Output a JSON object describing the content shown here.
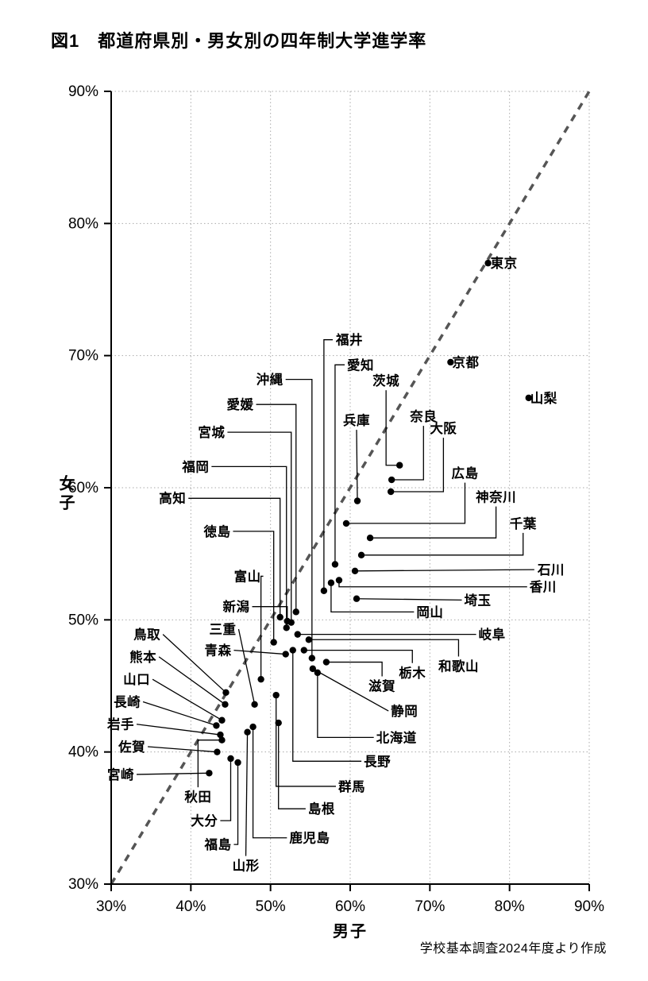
{
  "title": "図1　都道府県別・男女別の四年制大学進学率",
  "source_note": "学校基本調査2024年度より作成",
  "colors": {
    "background": "#ffffff",
    "dot": "#000000",
    "leader_line": "#000000",
    "grid": "#aaaaaa",
    "diagonal_line": "#555555",
    "axis": "#000000",
    "text": "#000000"
  },
  "chart_data": {
    "type": "scatter",
    "title": "図1　都道府県別・男女別の四年制大学進学率",
    "xlabel": "男子",
    "ylabel": "女子",
    "xlim": [
      30,
      90
    ],
    "ylim": [
      30,
      90
    ],
    "tick_values": [
      30,
      40,
      50,
      60,
      70,
      80,
      90
    ],
    "x_tick_labels": [
      "30%",
      "40%",
      "50%",
      "60%",
      "70%",
      "80%",
      "90%"
    ],
    "y_tick_labels": [
      "30%",
      "40%",
      "50%",
      "60%",
      "70%",
      "80%",
      "90%"
    ],
    "unit": "%",
    "grid": true,
    "identity_line": true,
    "points": [
      {
        "name": "東京",
        "male": 77.3,
        "female": 77.0,
        "lx": 79.3,
        "ly": 77.0,
        "leader": "none"
      },
      {
        "name": "京都",
        "male": 72.6,
        "female": 69.5,
        "lx": 74.5,
        "ly": 69.5,
        "leader": "none"
      },
      {
        "name": "山梨",
        "male": 82.4,
        "female": 66.8,
        "lx": 84.3,
        "ly": 66.8,
        "leader": "none"
      },
      {
        "name": "茨城",
        "male": 66.2,
        "female": 61.7,
        "lx": 64.5,
        "ly": 68.1,
        "leader": "elbow-vh"
      },
      {
        "name": "奈良",
        "male": 65.2,
        "female": 60.6,
        "lx": 69.2,
        "ly": 65.4,
        "leader": "elbow-vh"
      },
      {
        "name": "大阪",
        "male": 65.1,
        "female": 59.7,
        "lx": 71.7,
        "ly": 64.5,
        "leader": "elbow-vh"
      },
      {
        "name": "兵庫",
        "male": 60.9,
        "female": 59.0,
        "lx": 60.8,
        "ly": 65.1,
        "leader": "v"
      },
      {
        "name": "広島",
        "male": 59.5,
        "female": 57.3,
        "lx": 74.4,
        "ly": 61.1,
        "leader": "elbow-vh"
      },
      {
        "name": "神奈川",
        "male": 62.5,
        "female": 56.2,
        "lx": 78.3,
        "ly": 59.3,
        "leader": "elbow-vh"
      },
      {
        "name": "千葉",
        "male": 61.4,
        "female": 54.9,
        "lx": 81.7,
        "ly": 57.3,
        "leader": "elbow-vh"
      },
      {
        "name": "愛知",
        "male": 58.1,
        "female": 54.2,
        "lx": 61.3,
        "ly": 69.3,
        "leader": "elbow-hv"
      },
      {
        "name": "石川",
        "male": 60.6,
        "female": 53.7,
        "lx": 85.2,
        "ly": 53.8,
        "leader": "h"
      },
      {
        "name": "香川",
        "male": 58.6,
        "female": 53.0,
        "lx": 84.2,
        "ly": 52.5,
        "leader": "elbow-hv"
      },
      {
        "name": "岡山",
        "male": 57.6,
        "female": 52.8,
        "lx": 70.0,
        "ly": 50.6,
        "leader": "elbow-hv"
      },
      {
        "name": "福井",
        "male": 56.7,
        "female": 52.2,
        "lx": 59.9,
        "ly": 71.2,
        "leader": "elbow-hv"
      },
      {
        "name": "埼玉",
        "male": 60.8,
        "female": 51.6,
        "lx": 76.0,
        "ly": 51.5,
        "leader": "h"
      },
      {
        "name": "愛媛",
        "male": 53.2,
        "female": 50.6,
        "lx": 46.2,
        "ly": 66.3,
        "leader": "elbow-hv"
      },
      {
        "name": "高知",
        "male": 51.2,
        "female": 50.2,
        "lx": 37.7,
        "ly": 59.2,
        "leader": "elbow-hv"
      },
      {
        "name": "新潟",
        "male": 52.1,
        "female": 49.9,
        "lx": 45.7,
        "ly": 51.0,
        "leader": "elbow-hv"
      },
      {
        "name": "宮城",
        "male": 52.6,
        "female": 49.8,
        "lx": 42.6,
        "ly": 64.2,
        "leader": "elbow-hv"
      },
      {
        "name": "福岡",
        "male": 52.0,
        "female": 49.4,
        "lx": 40.6,
        "ly": 61.6,
        "leader": "elbow-hv"
      },
      {
        "name": "岐阜",
        "male": 53.4,
        "female": 48.9,
        "lx": 77.8,
        "ly": 48.9,
        "leader": "h"
      },
      {
        "name": "和歌山",
        "male": 54.8,
        "female": 48.5,
        "lx": 73.6,
        "ly": 46.5,
        "leader": "elbow-vh"
      },
      {
        "name": "徳島",
        "male": 50.4,
        "female": 48.3,
        "lx": 43.3,
        "ly": 56.7,
        "leader": "elbow-hv"
      },
      {
        "name": "栃木",
        "male": 54.2,
        "female": 47.7,
        "lx": 67.8,
        "ly": 46.0,
        "leader": "elbow-vh"
      },
      {
        "name": "長野",
        "male": 52.8,
        "female": 47.7,
        "lx": 63.4,
        "ly": 39.3,
        "leader": "elbow-hv"
      },
      {
        "name": "青森",
        "male": 51.9,
        "female": 47.4,
        "lx": 43.4,
        "ly": 47.7,
        "leader": "diag"
      },
      {
        "name": "沖縄",
        "male": 55.2,
        "female": 47.1,
        "lx": 49.9,
        "ly": 68.2,
        "leader": "elbow-hv"
      },
      {
        "name": "滋賀",
        "male": 57.0,
        "female": 46.8,
        "lx": 64.0,
        "ly": 45.0,
        "leader": "elbow-vh"
      },
      {
        "name": "静岡",
        "male": 55.3,
        "female": 46.3,
        "lx": 66.8,
        "ly": 43.1,
        "leader": "diag"
      },
      {
        "name": "北海道",
        "male": 55.9,
        "female": 46.0,
        "lx": 65.8,
        "ly": 41.1,
        "leader": "elbow-hv"
      },
      {
        "name": "富山",
        "male": 48.8,
        "female": 45.5,
        "lx": 47.1,
        "ly": 53.3,
        "leader": "elbow-hv"
      },
      {
        "name": "鳥取",
        "male": 44.4,
        "female": 44.5,
        "lx": 34.5,
        "ly": 48.9,
        "leader": "diag"
      },
      {
        "name": "群馬",
        "male": 50.7,
        "female": 44.3,
        "lx": 60.2,
        "ly": 37.4,
        "leader": "elbow-hv"
      },
      {
        "name": "三重",
        "male": 48.0,
        "female": 43.6,
        "lx": 44.0,
        "ly": 49.3,
        "leader": "diag"
      },
      {
        "name": "熊本",
        "male": 44.3,
        "female": 43.6,
        "lx": 34.0,
        "ly": 47.2,
        "leader": "diag"
      },
      {
        "name": "山口",
        "male": 43.9,
        "female": 42.4,
        "lx": 33.2,
        "ly": 45.5,
        "leader": "diag"
      },
      {
        "name": "島根",
        "male": 51.0,
        "female": 42.2,
        "lx": 56.4,
        "ly": 35.7,
        "leader": "elbow-hv"
      },
      {
        "name": "長崎",
        "male": 43.2,
        "female": 42.0,
        "lx": 32.0,
        "ly": 43.8,
        "leader": "diag"
      },
      {
        "name": "鹿児島",
        "male": 47.8,
        "female": 41.9,
        "lx": 54.9,
        "ly": 33.5,
        "leader": "elbow-hv"
      },
      {
        "name": "山形",
        "male": 47.1,
        "female": 41.5,
        "lx": 46.9,
        "ly": 31.4,
        "leader": "v"
      },
      {
        "name": "岩手",
        "male": 43.7,
        "female": 41.3,
        "lx": 31.2,
        "ly": 42.1,
        "leader": "diag"
      },
      {
        "name": "秋田",
        "male": 43.9,
        "female": 40.9,
        "lx": 40.9,
        "ly": 36.6,
        "leader": "elbow-vh"
      },
      {
        "name": "佐賀",
        "male": 43.3,
        "female": 40.0,
        "lx": 32.6,
        "ly": 40.4,
        "leader": "diag"
      },
      {
        "name": "大分",
        "male": 45.0,
        "female": 39.5,
        "lx": 41.7,
        "ly": 34.8,
        "leader": "elbow-hv"
      },
      {
        "name": "福島",
        "male": 45.9,
        "female": 39.2,
        "lx": 43.4,
        "ly": 33.0,
        "leader": "elbow-hv"
      },
      {
        "name": "宮崎",
        "male": 42.3,
        "female": 38.4,
        "lx": 31.2,
        "ly": 38.3,
        "leader": "h"
      }
    ]
  }
}
